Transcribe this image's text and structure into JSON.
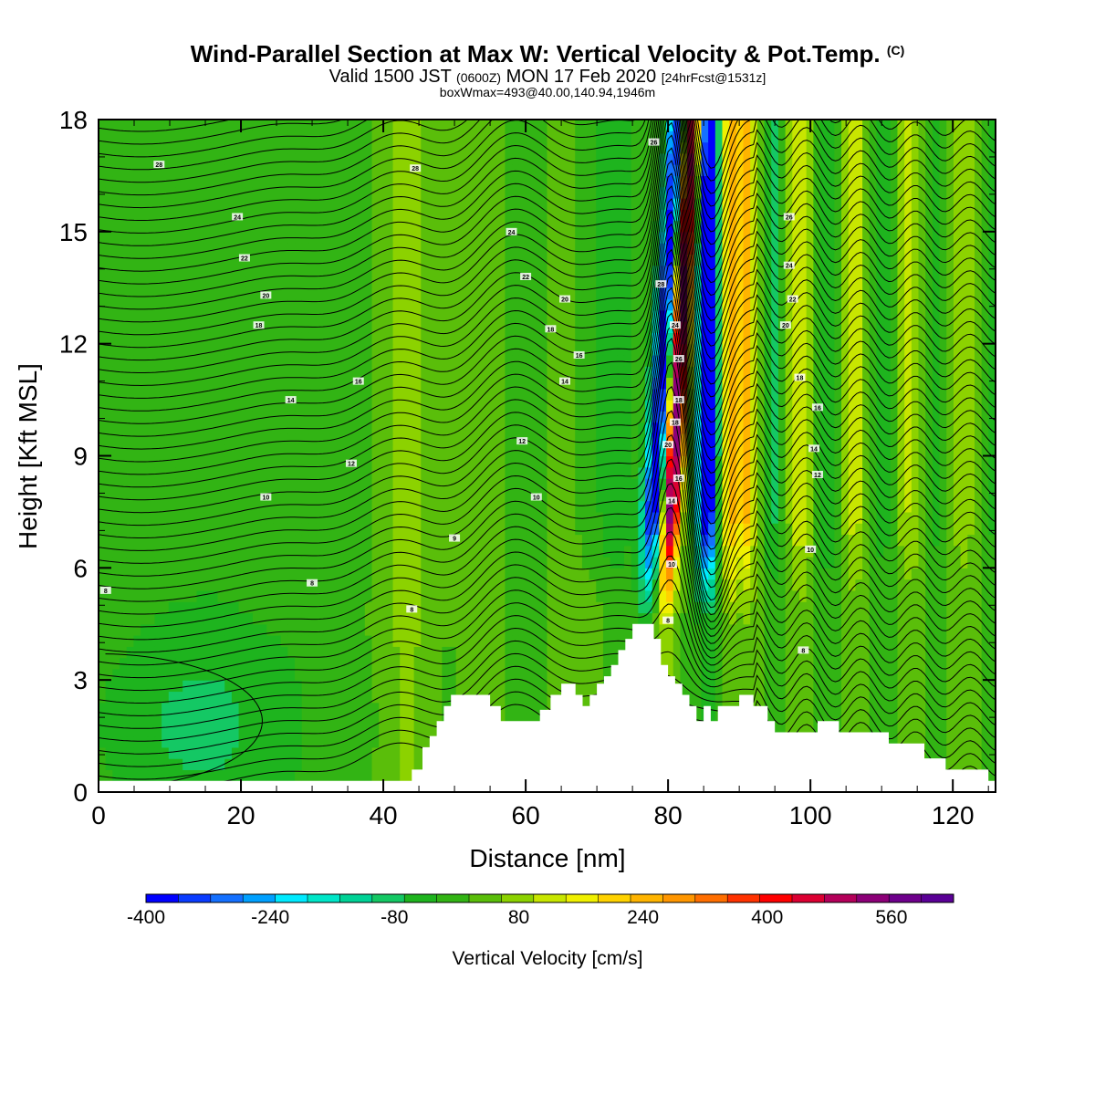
{
  "header": {
    "title": "Wind-Parallel Section at Max W: Vertical Velocity & Pot.Temp.",
    "title_suffix": "(C)",
    "valid_prefix": "Valid 1500 JST",
    "valid_zulu": "(0600Z)",
    "valid_date": "MON 17 Feb 2020",
    "forecast": "[24hrFcst@1531z]",
    "box_info": "boxWmax=493@40.00,140.94,1946m"
  },
  "chart_data": {
    "type": "heatmap",
    "xlabel": "Distance [nm]",
    "ylabel": "Height [Kft MSL]",
    "xlim": [
      0,
      126
    ],
    "ylim": [
      0,
      18
    ],
    "x_ticks": [
      0,
      20,
      40,
      60,
      80,
      100,
      120
    ],
    "y_ticks": [
      0,
      3,
      6,
      9,
      12,
      15,
      18
    ],
    "colorbar": {
      "label": "Vertical Velocity [cm/s]",
      "min": -400,
      "max": 640,
      "step": 40,
      "tick_labels": [
        -400,
        -240,
        -80,
        80,
        240,
        400,
        560
      ],
      "colors": [
        "#0000ff",
        "#0a3cff",
        "#1470ff",
        "#00a0ff",
        "#00eaff",
        "#00e6c8",
        "#00d296",
        "#14c864",
        "#1eb41e",
        "#32b414",
        "#5abe0a",
        "#8cd200",
        "#c8e600",
        "#f0f000",
        "#ffd200",
        "#ffb400",
        "#ff9600",
        "#ff6e00",
        "#ff3200",
        "#ff0000",
        "#dc0032",
        "#b4005a",
        "#8c0078",
        "#6e008c",
        "#5a0096"
      ]
    },
    "terrain": [
      [
        0,
        0.3
      ],
      [
        44,
        0.3
      ],
      [
        44,
        0.6
      ],
      [
        45.5,
        0.6
      ],
      [
        45.5,
        1.2
      ],
      [
        46.5,
        1.2
      ],
      [
        46.5,
        1.5
      ],
      [
        47.5,
        1.5
      ],
      [
        47.5,
        1.9
      ],
      [
        48.5,
        1.9
      ],
      [
        48.5,
        2.3
      ],
      [
        49.5,
        2.3
      ],
      [
        49.5,
        2.6
      ],
      [
        55,
        2.6
      ],
      [
        55,
        2.3
      ],
      [
        56.5,
        2.3
      ],
      [
        56.5,
        1.9
      ],
      [
        62,
        1.9
      ],
      [
        62,
        2.2
      ],
      [
        63.5,
        2.2
      ],
      [
        63.5,
        2.6
      ],
      [
        65,
        2.6
      ],
      [
        65,
        2.9
      ],
      [
        67,
        2.9
      ],
      [
        67,
        2.6
      ],
      [
        68,
        2.6
      ],
      [
        68,
        2.3
      ],
      [
        69,
        2.3
      ],
      [
        69,
        2.6
      ],
      [
        70,
        2.6
      ],
      [
        70,
        2.9
      ],
      [
        71,
        2.9
      ],
      [
        71,
        3.1
      ],
      [
        72,
        3.1
      ],
      [
        72,
        3.4
      ],
      [
        73,
        3.4
      ],
      [
        73,
        3.8
      ],
      [
        74,
        3.8
      ],
      [
        74,
        4.1
      ],
      [
        75,
        4.1
      ],
      [
        75,
        4.5
      ],
      [
        78,
        4.5
      ],
      [
        78,
        4.1
      ],
      [
        79,
        4.1
      ],
      [
        79,
        3.4
      ],
      [
        80,
        3.4
      ],
      [
        80,
        3.1
      ],
      [
        81,
        3.1
      ],
      [
        81,
        2.9
      ],
      [
        82,
        2.9
      ],
      [
        82,
        2.6
      ],
      [
        83,
        2.6
      ],
      [
        83,
        2.3
      ],
      [
        84,
        2.3
      ],
      [
        84,
        1.9
      ],
      [
        85,
        1.9
      ],
      [
        85,
        2.3
      ],
      [
        86,
        2.3
      ],
      [
        86,
        1.9
      ],
      [
        87,
        1.9
      ],
      [
        87,
        2.3
      ],
      [
        90,
        2.3
      ],
      [
        90,
        2.6
      ],
      [
        92,
        2.6
      ],
      [
        92,
        2.3
      ],
      [
        94,
        2.3
      ],
      [
        94,
        1.9
      ],
      [
        95,
        1.9
      ],
      [
        95,
        1.6
      ],
      [
        101,
        1.6
      ],
      [
        101,
        1.9
      ],
      [
        104,
        1.9
      ],
      [
        104,
        1.6
      ],
      [
        111,
        1.6
      ],
      [
        111,
        1.3
      ],
      [
        116,
        1.3
      ],
      [
        116,
        0.9
      ],
      [
        119,
        0.9
      ],
      [
        119,
        0.6
      ],
      [
        125,
        0.6
      ],
      [
        125,
        0.3
      ],
      [
        126,
        0.3
      ],
      [
        126,
        0
      ]
    ],
    "isentrope_labels": [
      {
        "text": "28",
        "x": 8.5,
        "y": 16.8
      },
      {
        "text": "28",
        "x": 44.5,
        "y": 16.7
      },
      {
        "text": "26",
        "x": 78,
        "y": 17.4
      },
      {
        "text": "24",
        "x": 19.5,
        "y": 15.4
      },
      {
        "text": "24",
        "x": 58,
        "y": 15.0
      },
      {
        "text": "26",
        "x": 97,
        "y": 15.4
      },
      {
        "text": "22",
        "x": 20.5,
        "y": 14.3
      },
      {
        "text": "22",
        "x": 60,
        "y": 13.8
      },
      {
        "text": "24",
        "x": 97,
        "y": 14.1
      },
      {
        "text": "20",
        "x": 23.5,
        "y": 13.3
      },
      {
        "text": "20",
        "x": 65.5,
        "y": 13.2
      },
      {
        "text": "28",
        "x": 79,
        "y": 13.6
      },
      {
        "text": "22",
        "x": 97.5,
        "y": 13.2
      },
      {
        "text": "18",
        "x": 22.5,
        "y": 12.5
      },
      {
        "text": "18",
        "x": 63.5,
        "y": 12.4
      },
      {
        "text": "24",
        "x": 81,
        "y": 12.5
      },
      {
        "text": "20",
        "x": 96.5,
        "y": 12.5
      },
      {
        "text": "16",
        "x": 36.5,
        "y": 11.0
      },
      {
        "text": "16",
        "x": 67.5,
        "y": 11.7
      },
      {
        "text": "26",
        "x": 81.5,
        "y": 11.6
      },
      {
        "text": "18",
        "x": 98.5,
        "y": 11.1
      },
      {
        "text": "14",
        "x": 27,
        "y": 10.5
      },
      {
        "text": "14",
        "x": 65.5,
        "y": 11.0
      },
      {
        "text": "18",
        "x": 81.5,
        "y": 10.5
      },
      {
        "text": "16",
        "x": 101,
        "y": 10.3
      },
      {
        "text": "18",
        "x": 81,
        "y": 9.9
      },
      {
        "text": "12",
        "x": 35.5,
        "y": 8.8
      },
      {
        "text": "12",
        "x": 59.5,
        "y": 9.4
      },
      {
        "text": "20",
        "x": 80,
        "y": 9.3
      },
      {
        "text": "14",
        "x": 100.5,
        "y": 9.2
      },
      {
        "text": "16",
        "x": 81.5,
        "y": 8.4
      },
      {
        "text": "12",
        "x": 101,
        "y": 8.5
      },
      {
        "text": "10",
        "x": 23.5,
        "y": 7.9
      },
      {
        "text": "10",
        "x": 61.5,
        "y": 7.9
      },
      {
        "text": "14",
        "x": 80.5,
        "y": 7.8
      },
      {
        "text": "9",
        "x": 50,
        "y": 6.8
      },
      {
        "text": "10",
        "x": 100,
        "y": 6.5
      },
      {
        "text": "8",
        "x": 1,
        "y": 5.4
      },
      {
        "text": "8",
        "x": 30,
        "y": 5.6
      },
      {
        "text": "10",
        "x": 80.5,
        "y": 6.1
      },
      {
        "text": "8",
        "x": 44,
        "y": 4.9
      },
      {
        "text": "8",
        "x": 80,
        "y": 4.6
      },
      {
        "text": "8",
        "x": 99,
        "y": 3.8
      }
    ]
  }
}
